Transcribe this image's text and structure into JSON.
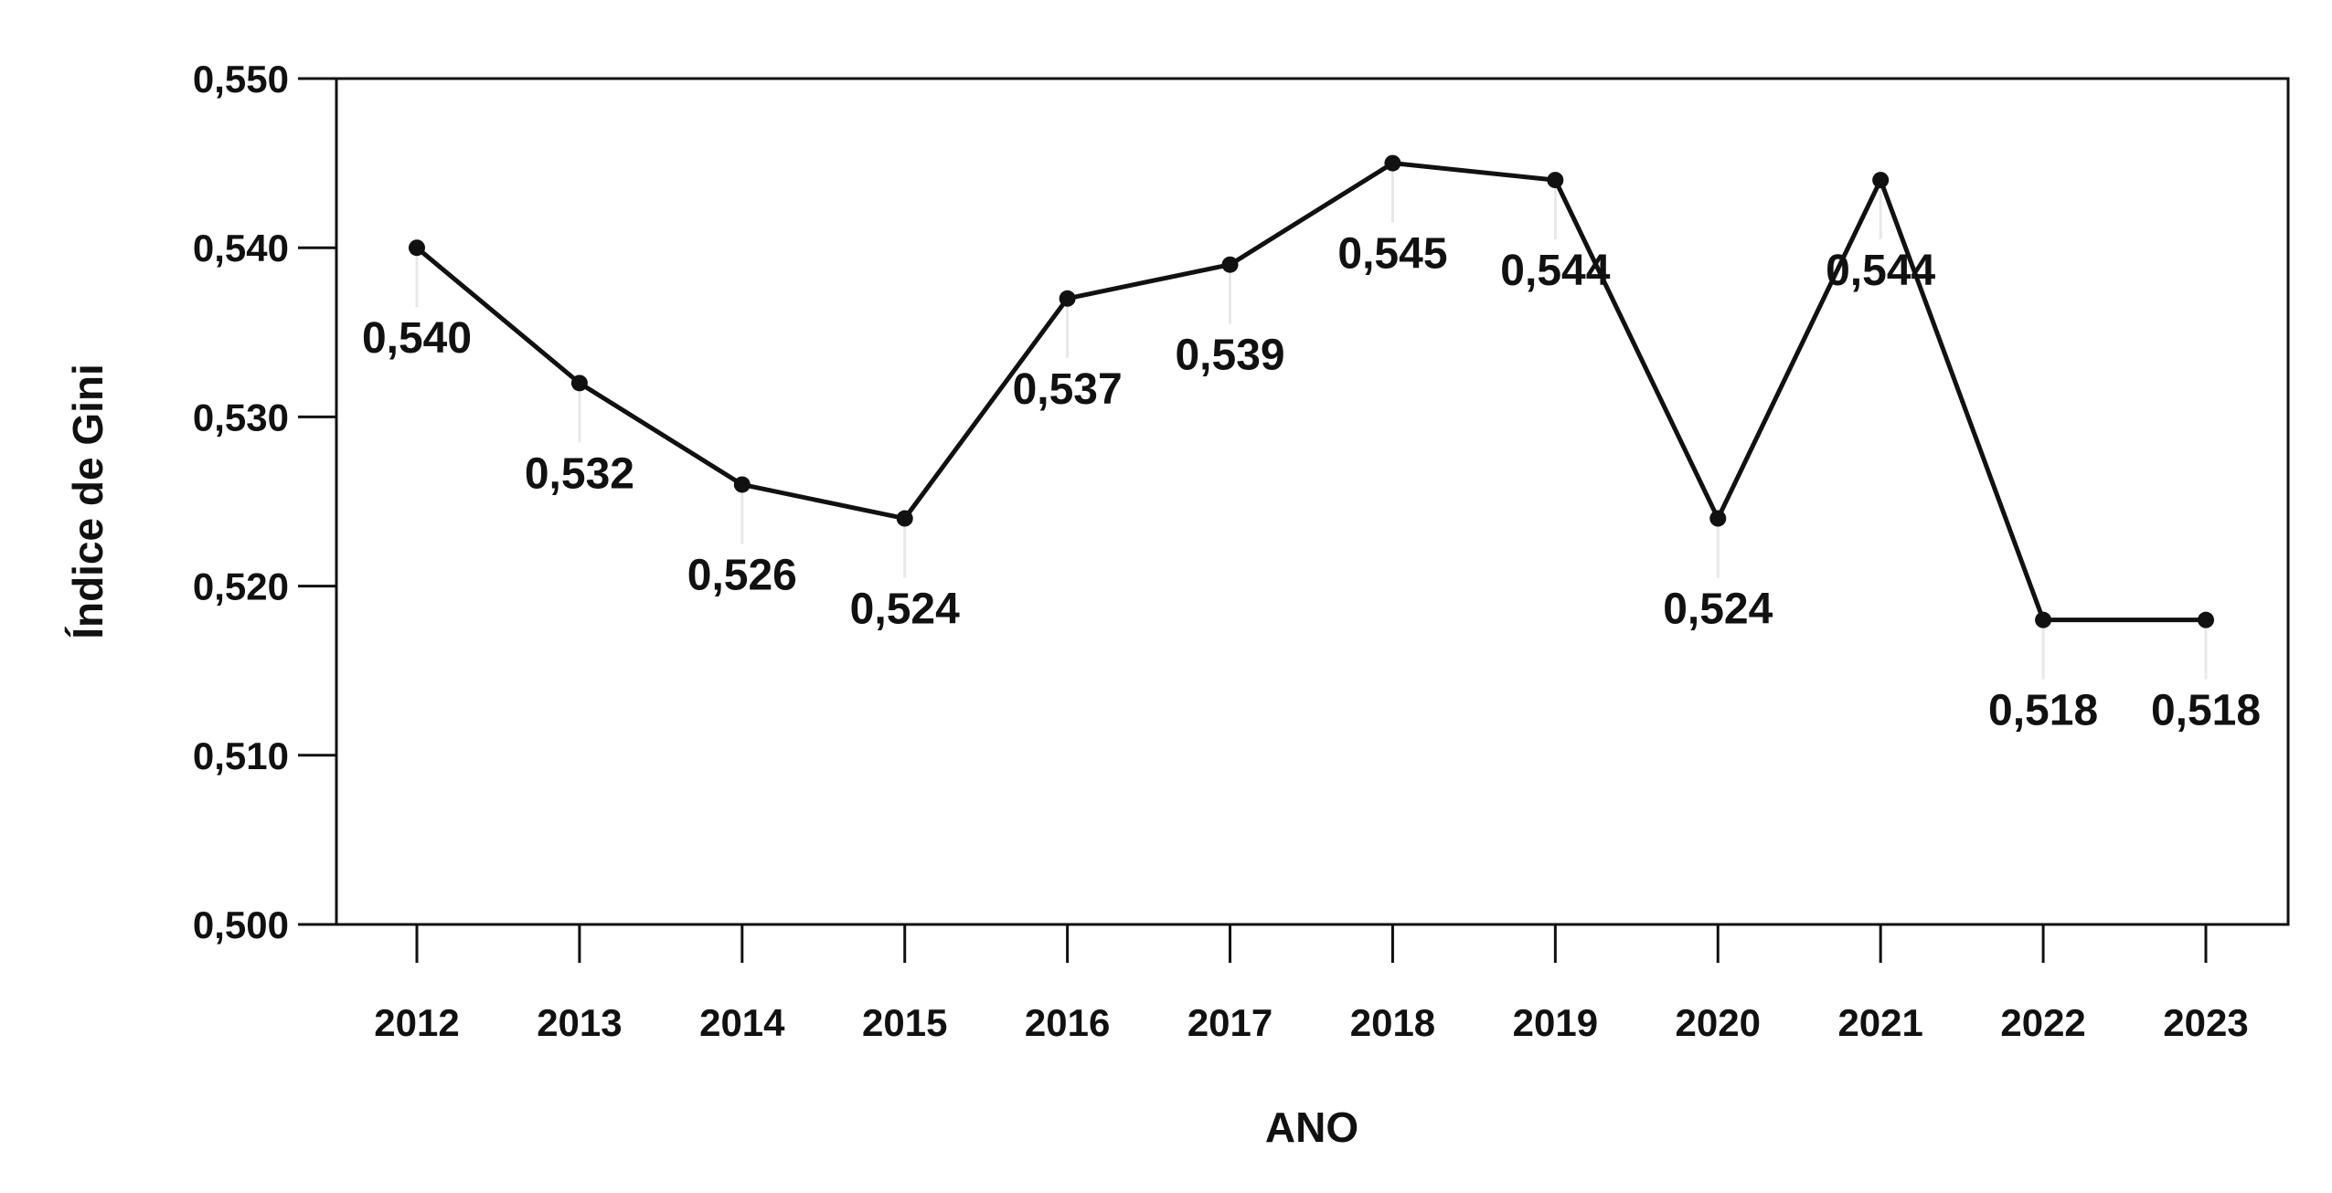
{
  "chart_data": {
    "type": "line",
    "title": "",
    "xlabel": "ANO",
    "ylabel": "Índice de Gini",
    "categories": [
      "2012",
      "2013",
      "2014",
      "2015",
      "2016",
      "2017",
      "2018",
      "2019",
      "2020",
      "2021",
      "2022",
      "2023"
    ],
    "series": [
      {
        "values": [
          0.54,
          0.532,
          0.526,
          0.524,
          0.537,
          0.539,
          0.545,
          0.544,
          0.524,
          0.544,
          0.518,
          0.518
        ],
        "labels": [
          "0,540",
          "0,532",
          "0,526",
          "0,524",
          "0,537",
          "0,539",
          "0,545",
          "0,544",
          "0,524",
          "0,544",
          "0,518",
          "0,518"
        ]
      }
    ],
    "ylim": [
      0.5,
      0.55
    ],
    "yticks": [
      "0,500",
      "0,510",
      "0,520",
      "0,530",
      "0,540",
      "0,550"
    ],
    "grid": false,
    "line_color": "#111111"
  }
}
